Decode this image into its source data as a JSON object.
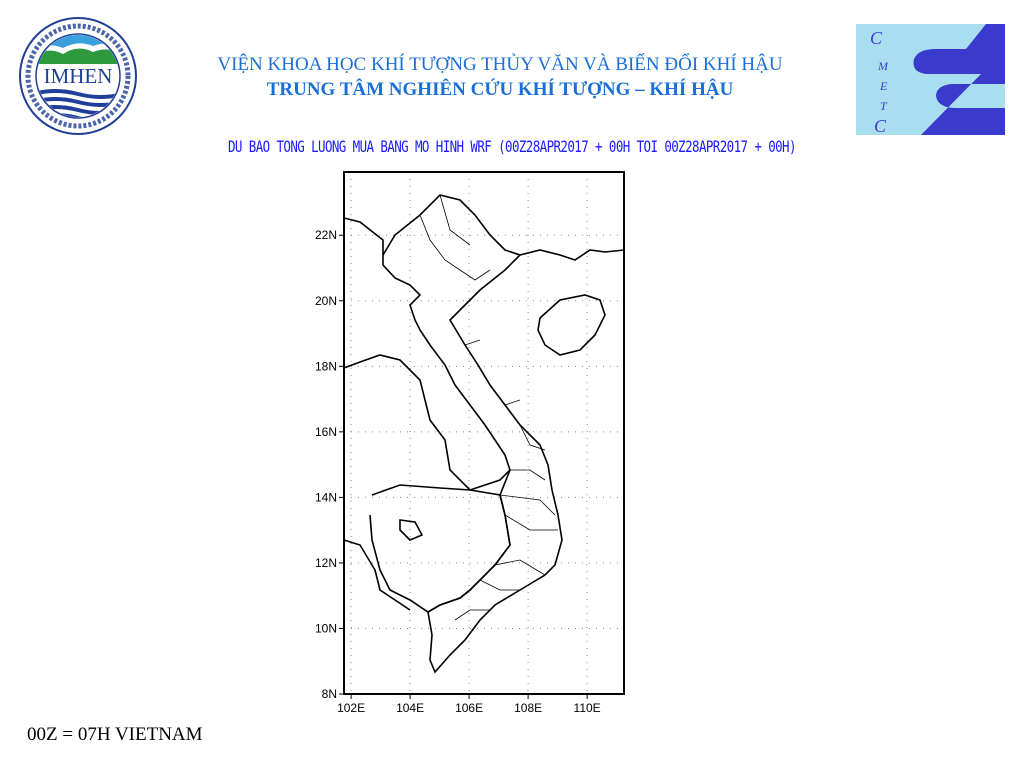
{
  "header": {
    "line1": "VIỆN KHOA HỌC KHÍ TƯỢNG THỦY VĂN VÀ BIẾN ĐỔI KHÍ HẬU",
    "line2": "TRUNG TÂM NGHIÊN CỨU KHÍ TƯỢNG – KHÍ HẬU"
  },
  "logo_left": {
    "text": "IMHEN",
    "ring_text": "VIỆN KHOA HỌC KHÍ TƯỢNG THỦY VĂN VÀ BIẾN ĐỔI KHÍ HẬU"
  },
  "logo_right": {
    "text": "CMETC"
  },
  "map": {
    "title": "DU BAO TONG LUONG MUA BANG MO HINH WRF (00Z28APR2017 + 00H TOI 00Z28APR2017 + 00H)",
    "lat_ticks": [
      "22N",
      "20N",
      "18N",
      "16N",
      "14N",
      "12N",
      "10N",
      "8N"
    ],
    "lon_ticks": [
      "102E",
      "104E",
      "106E",
      "108E",
      "110E"
    ],
    "extent": {
      "lon": [
        101.76,
        111.25
      ],
      "lat": [
        8,
        23.93
      ]
    },
    "grid": "dotted"
  },
  "footer_note": "00Z = 07H VIETNAM",
  "colors": {
    "title_blue": "#1a6fd6",
    "subtitle_blue": "#1a1aff",
    "cmetc_bg": "#a8def0",
    "cmetc_s": "#3a3acc"
  }
}
